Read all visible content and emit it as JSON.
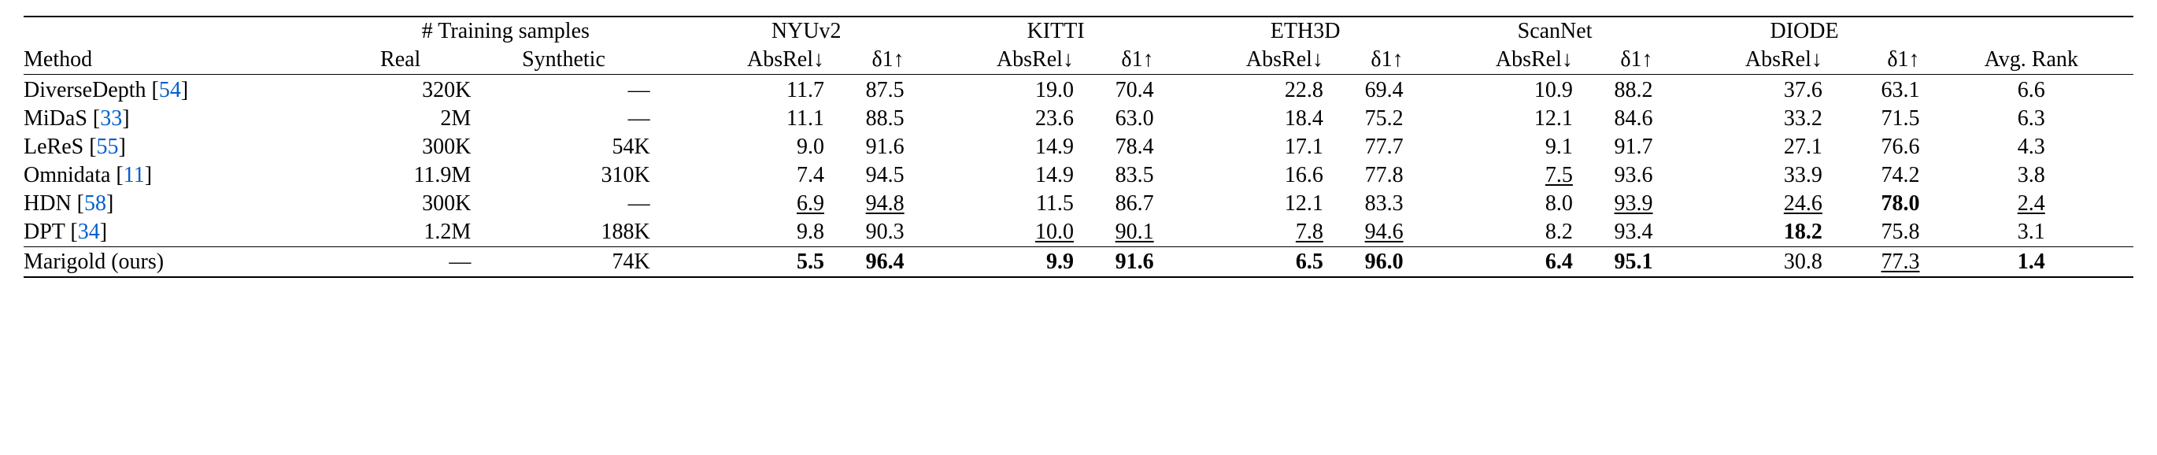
{
  "header": {
    "method": "Method",
    "training_samples": "# Training samples",
    "real": "Real",
    "synthetic": "Synthetic",
    "absrel": "AbsRel",
    "d1": "δ1",
    "down_arrow": "↓",
    "up_arrow": "↑",
    "avg_rank": "Avg. Rank",
    "datasets": [
      "NYUv2",
      "KITTI",
      "ETH3D",
      "ScanNet",
      "DIODE"
    ]
  },
  "colors": {
    "cite": "#0060cc",
    "text": "#000000",
    "background": "#ffffff"
  },
  "rows": [
    {
      "method": "DiverseDepth",
      "cite": "54",
      "real": "320K",
      "synthetic": "—",
      "vals": [
        {
          "absrel": "11.7",
          "d1": "87.5"
        },
        {
          "absrel": "19.0",
          "d1": "70.4"
        },
        {
          "absrel": "22.8",
          "d1": "69.4"
        },
        {
          "absrel": "10.9",
          "d1": "88.2"
        },
        {
          "absrel": "37.6",
          "d1": "63.1"
        }
      ],
      "rank": "6.6"
    },
    {
      "method": "MiDaS",
      "cite": "33",
      "real": "2M",
      "synthetic": "—",
      "vals": [
        {
          "absrel": "11.1",
          "d1": "88.5"
        },
        {
          "absrel": "23.6",
          "d1": "63.0"
        },
        {
          "absrel": "18.4",
          "d1": "75.2"
        },
        {
          "absrel": "12.1",
          "d1": "84.6"
        },
        {
          "absrel": "33.2",
          "d1": "71.5"
        }
      ],
      "rank": "6.3"
    },
    {
      "method": "LeReS",
      "cite": "55",
      "real": "300K",
      "synthetic": "54K",
      "vals": [
        {
          "absrel": "9.0",
          "d1": "91.6"
        },
        {
          "absrel": "14.9",
          "d1": "78.4"
        },
        {
          "absrel": "17.1",
          "d1": "77.7"
        },
        {
          "absrel": "9.1",
          "d1": "91.7"
        },
        {
          "absrel": "27.1",
          "d1": "76.6"
        }
      ],
      "rank": "4.3"
    },
    {
      "method": "Omnidata",
      "cite": "11",
      "real": "11.9M",
      "synthetic": "310K",
      "vals": [
        {
          "absrel": "7.4",
          "d1": "94.5"
        },
        {
          "absrel": "14.9",
          "d1": "83.5"
        },
        {
          "absrel": "16.6",
          "d1": "77.8"
        },
        {
          "absrel": "7.5",
          "absrel_style": "underline",
          "d1": "93.6"
        },
        {
          "absrel": "33.9",
          "d1": "74.2"
        }
      ],
      "rank": "3.8"
    },
    {
      "method": "HDN",
      "cite": "58",
      "real": "300K",
      "synthetic": "—",
      "vals": [
        {
          "absrel": "6.9",
          "absrel_style": "underline",
          "d1": "94.8",
          "d1_style": "underline"
        },
        {
          "absrel": "11.5",
          "d1": "86.7"
        },
        {
          "absrel": "12.1",
          "d1": "83.3"
        },
        {
          "absrel": "8.0",
          "d1": "93.9",
          "d1_style": "underline"
        },
        {
          "absrel": "24.6",
          "absrel_style": "underline",
          "d1": "78.0",
          "d1_style": "bold"
        }
      ],
      "rank": "2.4",
      "rank_style": "underline"
    },
    {
      "method": "DPT",
      "cite": "34",
      "real": "1.2M",
      "synthetic": "188K",
      "vals": [
        {
          "absrel": "9.8",
          "d1": "90.3"
        },
        {
          "absrel": "10.0",
          "absrel_style": "underline",
          "d1": "90.1",
          "d1_style": "underline"
        },
        {
          "absrel": "7.8",
          "absrel_style": "underline",
          "d1": "94.6",
          "d1_style": "underline"
        },
        {
          "absrel": "8.2",
          "d1": "93.4"
        },
        {
          "absrel": "18.2",
          "absrel_style": "bold",
          "d1": "75.8"
        }
      ],
      "rank": "3.1"
    }
  ],
  "ours": {
    "method": "Marigold (ours)",
    "real": "—",
    "synthetic": "74K",
    "vals": [
      {
        "absrel": "5.5",
        "absrel_style": "bold",
        "d1": "96.4",
        "d1_style": "bold"
      },
      {
        "absrel": "9.9",
        "absrel_style": "bold",
        "d1": "91.6",
        "d1_style": "bold"
      },
      {
        "absrel": "6.5",
        "absrel_style": "bold",
        "d1": "96.0",
        "d1_style": "bold"
      },
      {
        "absrel": "6.4",
        "absrel_style": "bold",
        "d1": "95.1",
        "d1_style": "bold"
      },
      {
        "absrel": "30.8",
        "d1": "77.3",
        "d1_style": "underline"
      }
    ],
    "rank": "1.4",
    "rank_style": "bold"
  }
}
